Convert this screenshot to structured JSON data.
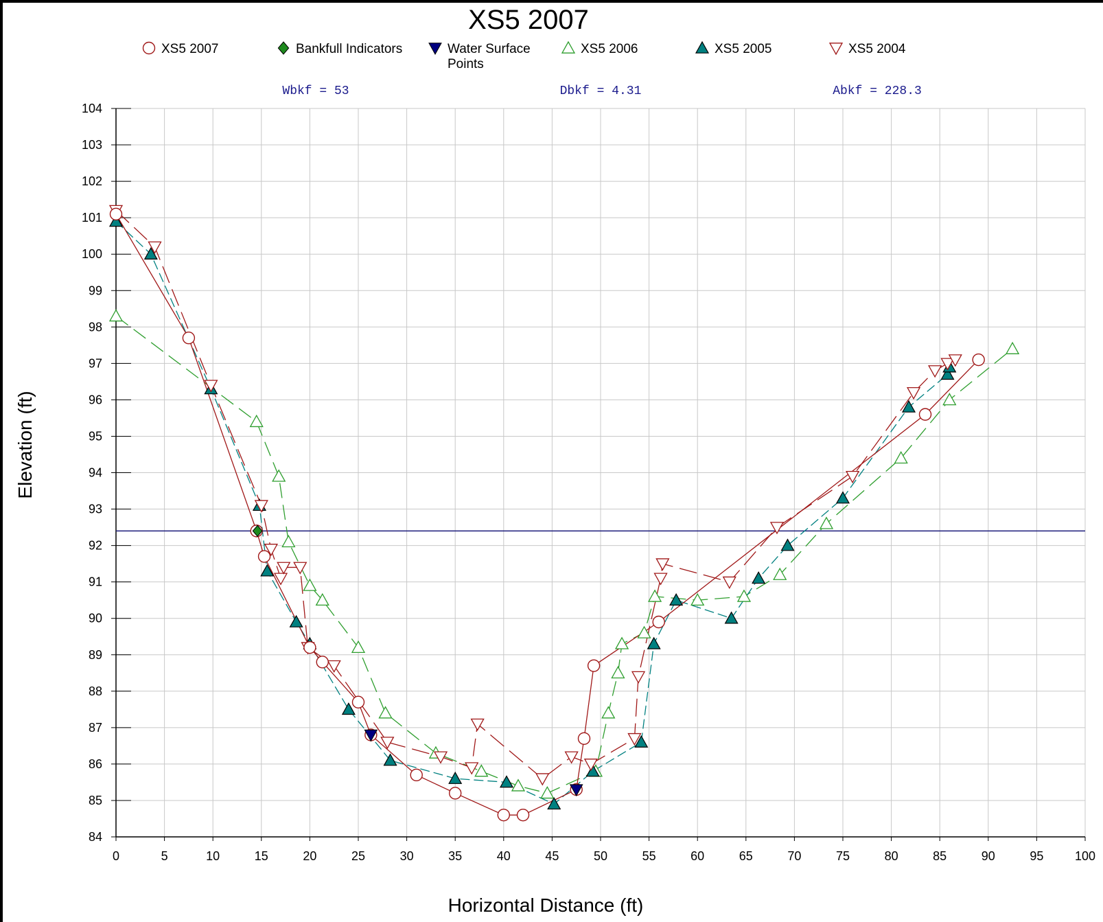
{
  "chart_data": {
    "type": "line",
    "title": "XS5 2007",
    "xlabel": "Horizontal Distance (ft)",
    "ylabel": "Elevation (ft)",
    "xlim": [
      0,
      100
    ],
    "ylim": [
      84,
      104
    ],
    "x_ticks": [
      "0",
      "5",
      "10",
      "15",
      "20",
      "25",
      "30",
      "35",
      "40",
      "45",
      "50",
      "55",
      "60",
      "65",
      "70",
      "75",
      "80",
      "85",
      "90",
      "95",
      "100"
    ],
    "y_ticks": [
      "84",
      "85",
      "86",
      "87",
      "88",
      "89",
      "90",
      "91",
      "92",
      "93",
      "94",
      "95",
      "96",
      "97",
      "98",
      "99",
      "100",
      "101",
      "102",
      "103",
      "104"
    ],
    "grid": true,
    "legend_position": "top",
    "legend": [
      {
        "label": "XS5 2007",
        "marker": "circle-open",
        "color": "#a01818"
      },
      {
        "label": "Bankfull Indicators",
        "marker": "diamond-filled",
        "color": "#1e8a1e"
      },
      {
        "label": "Water Surface",
        "label2": "Points",
        "marker": "triangle-down-filled",
        "color": "#000080"
      },
      {
        "label": "XS5 2006",
        "marker": "triangle-up-open",
        "color": "#2e9e2e"
      },
      {
        "label": "XS5 2005",
        "marker": "triangle-up-filled",
        "color": "#008080"
      },
      {
        "label": "XS5 2004",
        "marker": "triangle-down-open",
        "color": "#a01818"
      }
    ],
    "stats": {
      "wbkf": "Wbkf = 53",
      "dbkf": "Dbkf = 4.31",
      "abkf": "Abkf = 228.3"
    },
    "water_surface_elevation": 92.4,
    "series": [
      {
        "name": "XS5 2006",
        "color": "#2e9e2e",
        "marker": "triangle-up-open",
        "dash": "22,10",
        "points": [
          [
            0,
            98.3
          ],
          [
            14.5,
            95.4
          ],
          [
            16.8,
            93.9
          ],
          [
            17.8,
            92.1
          ],
          [
            20,
            90.9
          ],
          [
            21.3,
            90.5
          ],
          [
            25,
            89.2
          ],
          [
            27.8,
            87.4
          ],
          [
            33,
            86.3
          ],
          [
            37.7,
            85.8
          ],
          [
            41.5,
            85.4
          ],
          [
            44.5,
            85.2
          ],
          [
            49.5,
            85.8
          ],
          [
            50.8,
            87.4
          ],
          [
            51.8,
            88.5
          ],
          [
            52.2,
            89.3
          ],
          [
            54.5,
            89.6
          ],
          [
            55.6,
            90.6
          ],
          [
            60,
            90.5
          ],
          [
            64.8,
            90.6
          ],
          [
            68.5,
            91.2
          ],
          [
            73.3,
            92.6
          ],
          [
            81,
            94.4
          ],
          [
            86,
            96
          ],
          [
            92.5,
            97.4
          ]
        ]
      },
      {
        "name": "XS5 2005",
        "color": "#008080",
        "marker": "triangle-up-filled",
        "dash": "14,6",
        "points": [
          [
            0,
            100.9
          ],
          [
            3.6,
            100
          ],
          [
            9.8,
            96.3
          ],
          [
            14.8,
            93.1
          ],
          [
            15.6,
            91.3
          ],
          [
            18.6,
            89.9
          ],
          [
            20,
            89.3
          ],
          [
            24,
            87.5
          ],
          [
            28.3,
            86.1
          ],
          [
            35,
            85.6
          ],
          [
            40.3,
            85.5
          ],
          [
            45.2,
            84.9
          ],
          [
            49.2,
            85.8
          ],
          [
            54.2,
            86.6
          ],
          [
            55.5,
            89.3
          ],
          [
            57.8,
            90.5
          ],
          [
            63.5,
            90
          ],
          [
            66.3,
            91.1
          ],
          [
            69.3,
            92
          ],
          [
            75,
            93.3
          ],
          [
            81.8,
            95.8
          ],
          [
            85.8,
            96.7
          ],
          [
            86,
            96.9
          ]
        ]
      },
      {
        "name": "XS5 2004",
        "color": "#a01818",
        "marker": "triangle-down-open",
        "dash": "26,10",
        "points": [
          [
            0,
            101.2
          ],
          [
            4,
            100.2
          ],
          [
            9.8,
            96.4
          ],
          [
            15,
            93.1
          ],
          [
            16,
            91.9
          ],
          [
            17,
            91.1
          ],
          [
            17.3,
            91.4
          ],
          [
            19,
            91.4
          ],
          [
            19.8,
            89.2
          ],
          [
            22.5,
            88.7
          ],
          [
            28,
            86.6
          ],
          [
            33.5,
            86.2
          ],
          [
            36.7,
            85.9
          ],
          [
            37.3,
            87.1
          ],
          [
            44,
            85.6
          ],
          [
            47,
            86.2
          ],
          [
            49,
            86
          ],
          [
            53.5,
            86.7
          ],
          [
            53.9,
            88.4
          ],
          [
            56.2,
            91.1
          ],
          [
            56.4,
            91.5
          ],
          [
            63.3,
            91
          ],
          [
            68.2,
            92.5
          ],
          [
            76,
            93.9
          ],
          [
            82.3,
            96.2
          ],
          [
            84.5,
            96.8
          ],
          [
            85.8,
            97
          ],
          [
            86.6,
            97.1
          ]
        ]
      },
      {
        "name": "XS5 2007",
        "color": "#a01818",
        "marker": "circle-open",
        "dash": "",
        "points": [
          [
            0,
            101.1
          ],
          [
            7.5,
            97.7
          ],
          [
            14.5,
            92.4
          ],
          [
            15.3,
            91.7
          ],
          [
            20,
            89.2
          ],
          [
            21.3,
            88.8
          ],
          [
            25,
            87.7
          ],
          [
            26.3,
            86.8
          ],
          [
            31,
            85.7
          ],
          [
            35,
            85.2
          ],
          [
            40,
            84.6
          ],
          [
            42,
            84.6
          ],
          [
            47.5,
            85.3
          ],
          [
            48.3,
            86.7
          ],
          [
            49.3,
            88.7
          ],
          [
            56,
            89.9
          ],
          [
            83.5,
            95.6
          ],
          [
            89,
            97.1
          ]
        ]
      }
    ],
    "bankfull_indicators": [
      [
        14.6,
        92.4
      ]
    ],
    "water_surface_points": [
      [
        26.3,
        86.8
      ],
      [
        47.5,
        85.3
      ]
    ]
  }
}
